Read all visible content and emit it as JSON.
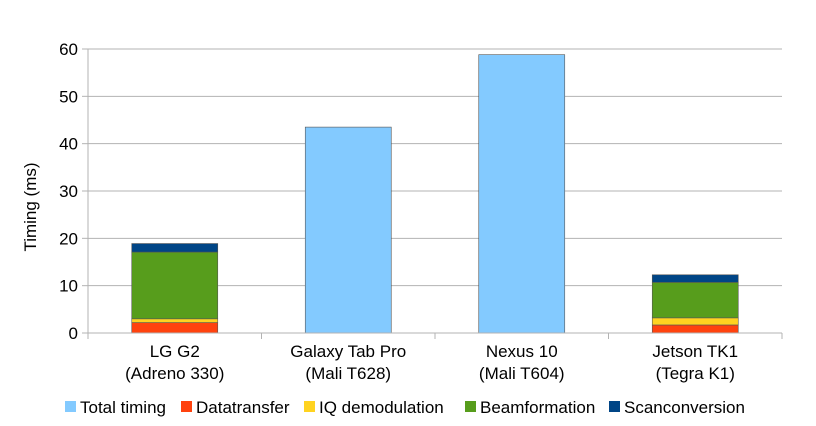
{
  "chart_data": {
    "type": "bar",
    "stacked": true,
    "title": "",
    "xlabel": "",
    "ylabel": "Timing (ms)",
    "ylim": [
      0,
      60
    ],
    "yticks": [
      0,
      10,
      20,
      30,
      40,
      50,
      60
    ],
    "grid": true,
    "legend_position": "bottom",
    "categories": [
      [
        "LG G2",
        "(Adreno 330)"
      ],
      [
        "Galaxy Tab Pro",
        "(Mali T628)"
      ],
      [
        "Nexus 10",
        "(Mali T604)"
      ],
      [
        "Jetson TK1",
        "(Tegra K1)"
      ]
    ],
    "series": [
      {
        "name": "Total timing",
        "color": "#83caff",
        "values": [
          0,
          43.5,
          58.8,
          0
        ]
      },
      {
        "name": "Datatransfer",
        "color": "#ff420e",
        "values": [
          2.2,
          0,
          0,
          1.7
        ]
      },
      {
        "name": "IQ demodulation",
        "color": "#ffd320",
        "values": [
          0.8,
          0,
          0,
          1.5
        ]
      },
      {
        "name": "Beamformation",
        "color": "#579d1c",
        "values": [
          14.1,
          0,
          0,
          7.5
        ]
      },
      {
        "name": "Scanconversion",
        "color": "#004586",
        "values": [
          1.8,
          0,
          0,
          1.6
        ]
      }
    ]
  }
}
